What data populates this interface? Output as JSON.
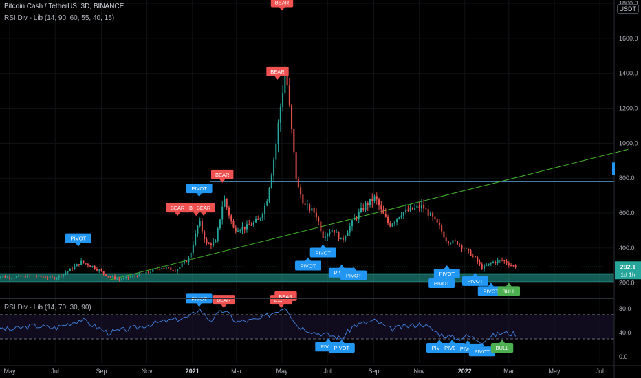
{
  "header": {
    "title": "Bitcoin Cash / TetherUS, 3D, BINANCE",
    "indicator_main": "RSI Div - Lib (14, 90, 60, 55, 40, 15)",
    "indicator_pane": "RSI Div - Lib (14, 70, 30, 90)",
    "currency_button": "USDT"
  },
  "colors": {
    "background": "#000000",
    "up": "#26a69a",
    "down": "#ef5350",
    "bear_label": "#f05151",
    "pivot_label": "#2196f3",
    "bull_label": "#4caf50",
    "zone": "#26a69a",
    "trendline": "#43b02a",
    "resistance": "#5ba6e0",
    "rsi_line": "#3d7bd6"
  },
  "chart_data": [
    {
      "type": "candlestick",
      "title": "Bitcoin Cash / TetherUS, 3D, BINANCE",
      "ylim": [
        120,
        1820
      ],
      "y_ticks": [
        "1800.0",
        "1600.0",
        "1400.0",
        "1200.0",
        "1000.0",
        "800.0",
        "600.0",
        "400.0",
        "200.0"
      ],
      "x_ticks": [
        "May",
        "Jul",
        "Sep",
        "Nov",
        "2021",
        "Mar",
        "May",
        "Jul",
        "Sep",
        "Nov",
        "2022",
        "Mar",
        "May",
        "Jul"
      ],
      "x_tick_dates": [
        "2020-05-01",
        "2020-07-01",
        "2020-09-01",
        "2020-11-01",
        "2021-01-01",
        "2021-03-01",
        "2021-05-01",
        "2021-07-01",
        "2021-09-01",
        "2021-11-01",
        "2022-01-01",
        "2022-03-01",
        "2022-05-01",
        "2022-07-01"
      ],
      "last_price": "292.1",
      "countdown": "1d 1h",
      "horizontal_line": 780,
      "support_zone": [
        205,
        252
      ],
      "trendline": {
        "from": {
          "date": "2020-09-10",
          "value": 215
        },
        "to": {
          "date": "2022-08-08",
          "value": 965
        }
      },
      "price_path": [
        [
          "2020-04-10",
          240
        ],
        [
          "2020-05-01",
          232
        ],
        [
          "2020-06-01",
          240
        ],
        [
          "2020-07-01",
          228
        ],
        [
          "2020-07-20",
          272
        ],
        [
          "2020-08-05",
          320
        ],
        [
          "2020-08-20",
          295
        ],
        [
          "2020-09-10",
          240
        ],
        [
          "2020-09-25",
          220
        ],
        [
          "2020-10-15",
          240
        ],
        [
          "2020-11-01",
          258
        ],
        [
          "2020-11-20",
          290
        ],
        [
          "2020-12-10",
          272
        ],
        [
          "2020-12-28",
          345
        ],
        [
          "2021-01-10",
          555
        ],
        [
          "2021-01-20",
          420
        ],
        [
          "2021-02-01",
          430
        ],
        [
          "2021-02-12",
          690
        ],
        [
          "2021-02-25",
          510
        ],
        [
          "2021-03-15",
          520
        ],
        [
          "2021-03-31",
          560
        ],
        [
          "2021-04-10",
          660
        ],
        [
          "2021-04-22",
          960
        ],
        [
          "2021-04-30",
          1250
        ],
        [
          "2021-05-06",
          1420
        ],
        [
          "2021-05-13",
          1110
        ],
        [
          "2021-05-21",
          760
        ],
        [
          "2021-06-01",
          640
        ],
        [
          "2021-06-15",
          600
        ],
        [
          "2021-06-25",
          470
        ],
        [
          "2021-07-08",
          510
        ],
        [
          "2021-07-20",
          440
        ],
        [
          "2021-08-05",
          560
        ],
        [
          "2021-08-20",
          640
        ],
        [
          "2021-09-03",
          690
        ],
        [
          "2021-09-10",
          620
        ],
        [
          "2021-09-22",
          530
        ],
        [
          "2021-10-08",
          600
        ],
        [
          "2021-10-22",
          620
        ],
        [
          "2021-11-05",
          640
        ],
        [
          "2021-11-15",
          590
        ],
        [
          "2021-11-28",
          520
        ],
        [
          "2021-12-08",
          440
        ],
        [
          "2021-12-22",
          430
        ],
        [
          "2022-01-05",
          380
        ],
        [
          "2022-01-15",
          340
        ],
        [
          "2022-01-24",
          285
        ],
        [
          "2022-02-08",
          320
        ],
        [
          "2022-02-20",
          330
        ],
        [
          "2022-03-05",
          300
        ],
        [
          "2022-03-12",
          292
        ]
      ],
      "labels": [
        {
          "text": "BEAR",
          "date": "2021-05-01",
          "value": 1755,
          "side": "above"
        },
        {
          "text": "BEAR",
          "date": "2021-04-25",
          "value": 1360,
          "side": "above"
        },
        {
          "text": "BEAR",
          "date": "2021-02-10",
          "value": 770,
          "side": "above"
        },
        {
          "text": "BEAR",
          "date": "2020-12-12",
          "value": 580,
          "side": "above"
        },
        {
          "text": "BEAR",
          "date": "2021-01-06",
          "value": 580,
          "side": "above"
        },
        {
          "text": "BEAR",
          "date": "2021-01-16",
          "value": 580,
          "side": "above"
        },
        {
          "text": "PIVOT",
          "date": "2020-08-01",
          "value": 405,
          "side": "above"
        },
        {
          "text": "PIVOT",
          "date": "2021-01-10",
          "value": 690,
          "side": "above"
        },
        {
          "text": "PIVOT",
          "date": "2021-06-05",
          "value": 350,
          "side": "below"
        },
        {
          "text": "PIVOT",
          "date": "2021-06-25",
          "value": 425,
          "side": "below"
        },
        {
          "text": "PIVOT",
          "date": "2021-07-20",
          "value": 310,
          "side": "below"
        },
        {
          "text": "PIVOT",
          "date": "2021-08-05",
          "value": 295,
          "side": "below"
        },
        {
          "text": "PIVOT",
          "date": "2021-12-08",
          "value": 305,
          "side": "below"
        },
        {
          "text": "PIVOT",
          "date": "2021-12-01",
          "value": 250,
          "side": "below"
        },
        {
          "text": "PIVOT",
          "date": "2022-01-15",
          "value": 262,
          "side": "below"
        },
        {
          "text": "PIVOT",
          "date": "2022-02-05",
          "value": 205,
          "side": "below"
        },
        {
          "text": "BULL",
          "date": "2022-03-01",
          "value": 205,
          "side": "below"
        }
      ]
    },
    {
      "type": "line",
      "title": "RSI Div - Lib (14, 70, 30, 90)",
      "ylim": [
        -10,
        95
      ],
      "y_ticks": [
        "80.0",
        "40.0",
        "0.0"
      ],
      "overbought": 70,
      "oversold": 30,
      "rsi_path": [
        [
          "2020-04-10",
          50
        ],
        [
          "2020-05-01",
          45
        ],
        [
          "2020-06-01",
          52
        ],
        [
          "2020-07-01",
          48
        ],
        [
          "2020-08-05",
          62
        ],
        [
          "2020-09-10",
          40
        ],
        [
          "2020-10-15",
          48
        ],
        [
          "2020-11-20",
          58
        ],
        [
          "2020-12-28",
          66
        ],
        [
          "2021-01-10",
          80
        ],
        [
          "2021-01-25",
          60
        ],
        [
          "2021-02-12",
          78
        ],
        [
          "2021-03-01",
          58
        ],
        [
          "2021-03-31",
          62
        ],
        [
          "2021-04-22",
          75
        ],
        [
          "2021-05-06",
          84
        ],
        [
          "2021-05-21",
          52
        ],
        [
          "2021-06-15",
          40
        ],
        [
          "2021-07-08",
          35
        ],
        [
          "2021-07-20",
          30
        ],
        [
          "2021-08-05",
          52
        ],
        [
          "2021-09-03",
          60
        ],
        [
          "2021-09-22",
          46
        ],
        [
          "2021-10-22",
          52
        ],
        [
          "2021-11-05",
          55
        ],
        [
          "2021-11-28",
          38
        ],
        [
          "2021-12-22",
          30
        ],
        [
          "2022-01-05",
          35
        ],
        [
          "2022-01-24",
          26
        ],
        [
          "2022-02-08",
          35
        ],
        [
          "2022-02-20",
          40
        ],
        [
          "2022-03-12",
          38
        ]
      ],
      "labels": [
        {
          "text": "PIVOT",
          "date": "2021-01-10",
          "value": 82,
          "side": "above"
        },
        {
          "text": "BEAR",
          "date": "2021-02-12",
          "value": 80,
          "side": "above"
        },
        {
          "text": "BEAR",
          "date": "2021-04-30",
          "value": 80,
          "side": "above"
        },
        {
          "text": "BEAR",
          "date": "2021-05-06",
          "value": 86,
          "side": "above"
        },
        {
          "text": "PIVOT",
          "date": "2021-07-02",
          "value": 32,
          "side": "below"
        },
        {
          "text": "PIVOT",
          "date": "2021-07-20",
          "value": 30,
          "side": "below"
        },
        {
          "text": "PIVOT",
          "date": "2021-11-28",
          "value": 30,
          "side": "below"
        },
        {
          "text": "PIVOT",
          "date": "2021-12-15",
          "value": 30,
          "side": "below"
        },
        {
          "text": "PIVOT",
          "date": "2022-01-05",
          "value": 29,
          "side": "below"
        },
        {
          "text": "PIVOT",
          "date": "2022-01-24",
          "value": 24,
          "side": "below"
        },
        {
          "text": "BULL",
          "date": "2022-02-20",
          "value": 30,
          "side": "below"
        }
      ]
    }
  ]
}
